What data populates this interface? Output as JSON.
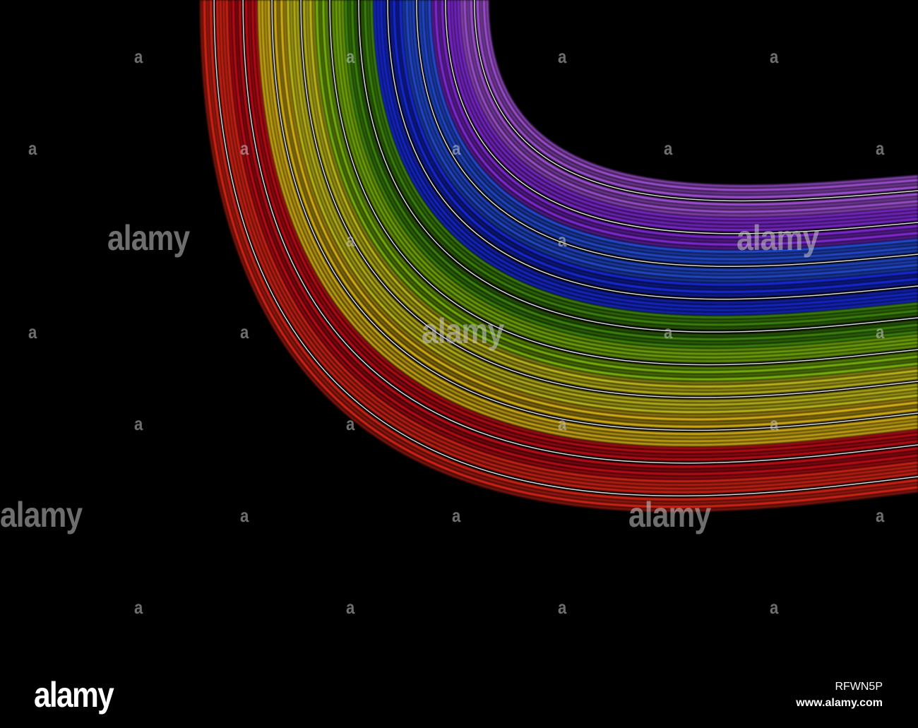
{
  "image": {
    "subject": "rainbow light trails",
    "background_color": "#000000",
    "band_colors": [
      "#ff2a1a",
      "#e0101a",
      "#ffd21a",
      "#e8e020",
      "#8fd40a",
      "#4aa010",
      "#1a30ff",
      "#2a5aff",
      "#9a30ff",
      "#c060ff"
    ],
    "highlight_color": "#ffffff"
  },
  "watermark": {
    "mark": "a",
    "word": "alamy"
  },
  "footer": {
    "logo": "alamy",
    "image_id": "RFWN5P",
    "site": "www.alamy.com"
  }
}
